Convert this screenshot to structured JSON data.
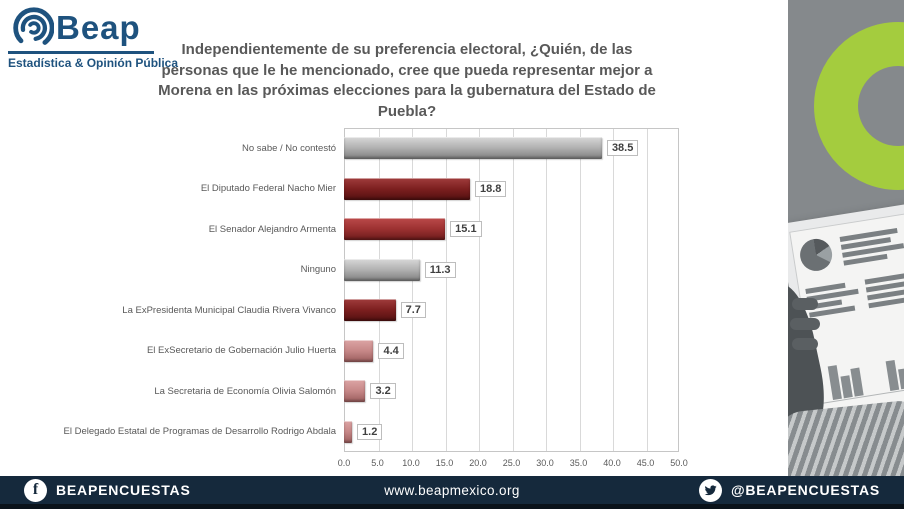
{
  "logo": {
    "brand": "Beap",
    "tagline": "Estadística & Opinión Pública",
    "brand_color": "#1e527e"
  },
  "title": "Independientemente de su preferencia electoral, ¿Quién, de las personas que le he mencionado, cree que pueda representar mejor a Morena en las próximas elecciones para la gubernatura del Estado de Puebla?",
  "chart_data": {
    "type": "bar",
    "orientation": "horizontal",
    "categories": [
      "No sabe / No contestó",
      "El Diputado Federal Nacho Mier",
      "El Senador Alejandro Armenta",
      "Ninguno",
      "La ExPresidenta Municipal Claudia Rivera Vivanco",
      "El ExSecretario de Gobernación Julio Huerta",
      "La Secretaria de Economía Olivia Salomón",
      "El Delegado Estatal de Programas de Desarrollo Rodrigo Abdala"
    ],
    "values": [
      38.5,
      18.8,
      15.1,
      11.3,
      7.7,
      4.4,
      3.2,
      1.2
    ],
    "value_labels": [
      "38.5",
      "18.8",
      "15.1",
      "11.3",
      "7.7",
      "4.4",
      "3.2",
      "1.2"
    ],
    "bar_palettes": [
      "gray",
      "darkred",
      "red",
      "gray",
      "darkred",
      "rose",
      "rose",
      "rose"
    ],
    "palettes": {
      "gray": [
        "#d8d8d8",
        "#b0b0b0",
        "#7e7e7e"
      ],
      "darkred": [
        "#a03c3c",
        "#7c1f1f",
        "#521010"
      ],
      "red": [
        "#bb4a4a",
        "#9c3131",
        "#6b1b1b"
      ],
      "rose": [
        "#dca4a4",
        "#c68787",
        "#9b5e5e"
      ]
    },
    "xlim": [
      0,
      50
    ],
    "x_ticks": [
      "0.0",
      "5.0",
      "10.0",
      "15.0",
      "20.0",
      "25.0",
      "30.0",
      "35.0",
      "40.0",
      "45.0",
      "50.0"
    ],
    "grid": true,
    "legend": null,
    "title": "",
    "xlabel": "",
    "ylabel": ""
  },
  "side_panel": {
    "accent_green": "#a4cc3e",
    "background": "#85898c"
  },
  "footer": {
    "facebook_handle": "BEAPENCUESTAS",
    "website": "www.beapmexico.org",
    "twitter_handle": "@BEAPENCUESTAS",
    "background": "#15293c"
  }
}
